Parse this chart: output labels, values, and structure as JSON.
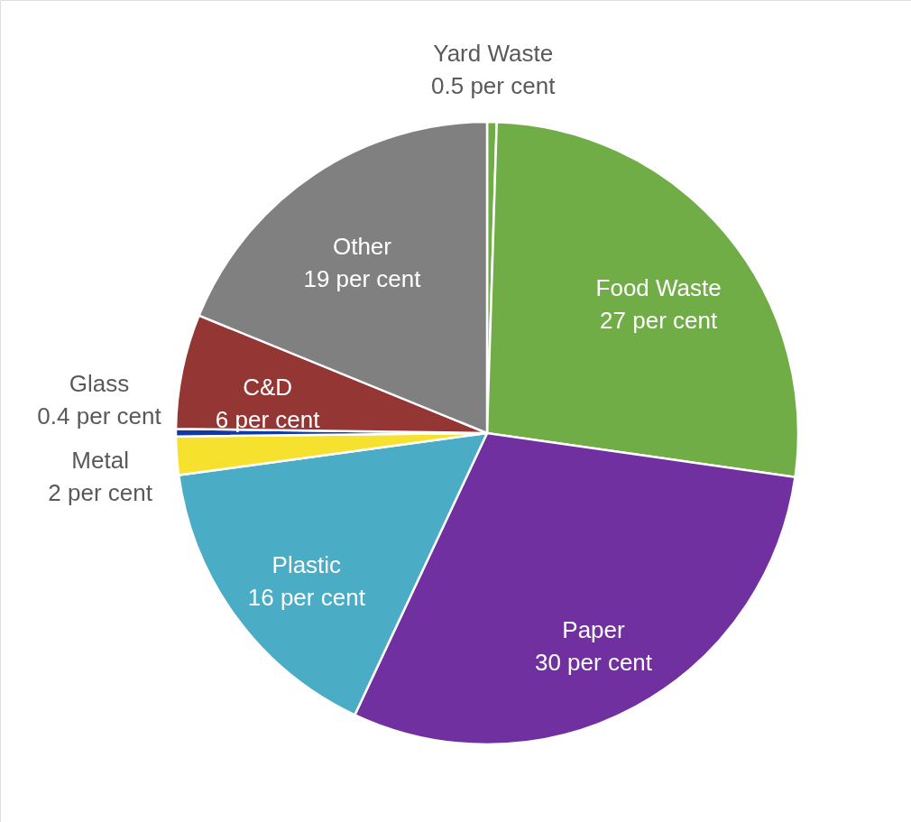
{
  "chart_data": {
    "type": "pie",
    "categories": [
      "Yard Waste",
      "Food Waste",
      "Paper",
      "Plastic",
      "Metal",
      "Glass",
      "C&D",
      "Other"
    ],
    "values": [
      0.5,
      27,
      30,
      16,
      2,
      0.4,
      6,
      19
    ],
    "colors": [
      "#70ad47",
      "#70ad47",
      "#7030a0",
      "#4bacc6",
      "#f5e12e",
      "#1039a8",
      "#943634",
      "#808080"
    ],
    "value_labels": [
      "0.5 per cent",
      "27 per cent",
      "30 per cent",
      "16 per cent",
      "2 per cent",
      "0.4 per cent",
      "6 per cent",
      "19 per cent"
    ]
  }
}
